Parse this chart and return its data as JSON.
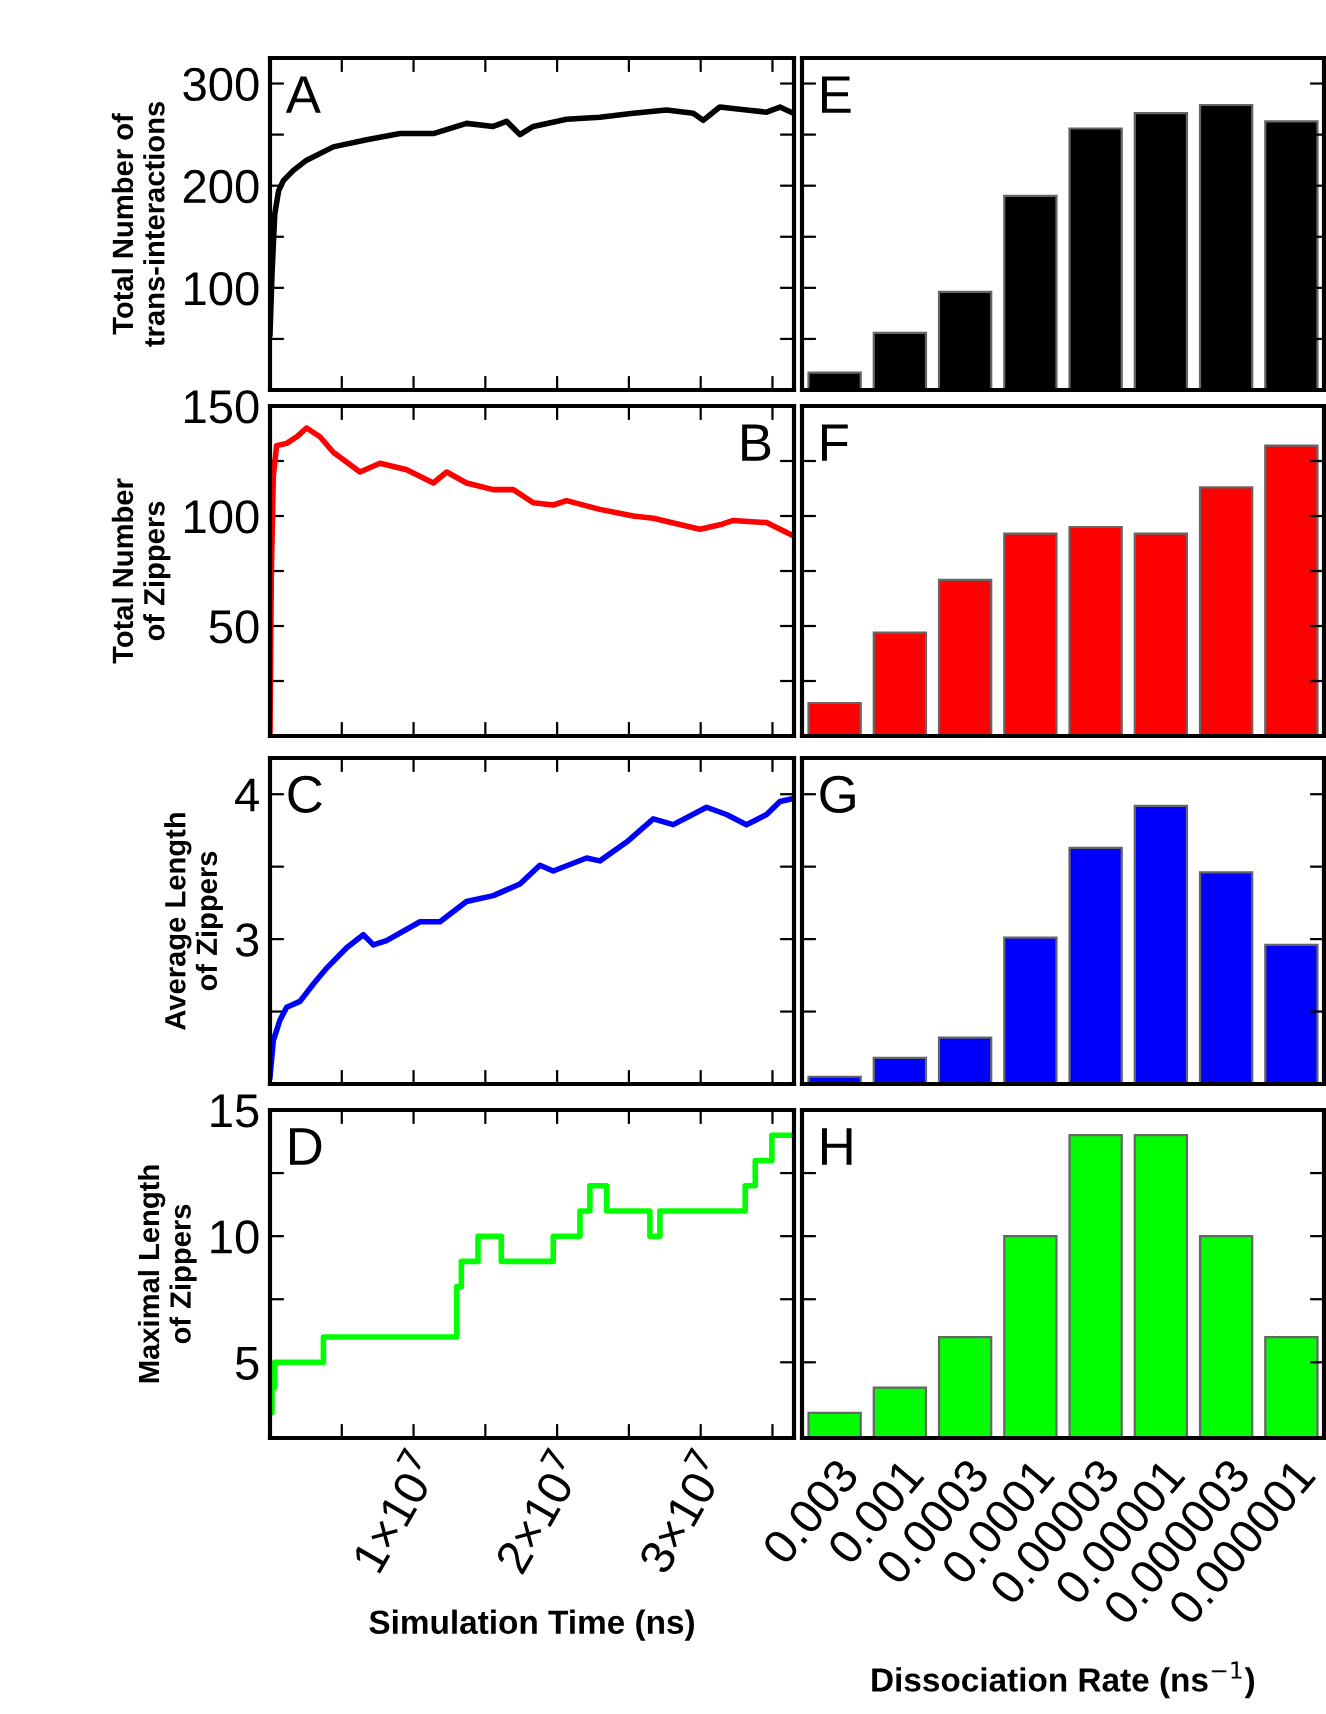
{
  "chart_data": [
    {
      "type": "line",
      "ylabel": "Total Number of\ntrans-interactions",
      "annotations": [
        "A"
      ],
      "xlim": [
        0,
        36500000.0
      ],
      "xticks": [
        {
          "value": 5000000.0,
          "label": null
        },
        {
          "value": 10000000.0,
          "label": null
        },
        {
          "value": 15000000.0,
          "label": null
        },
        {
          "value": 20000000.0,
          "label": null
        },
        {
          "value": 25000000.0,
          "label": null
        },
        {
          "value": 30000000.0,
          "label": null
        },
        {
          "value": 35000000.0,
          "label": null
        }
      ],
      "ylim": [
        0,
        325
      ],
      "yticks": [
        {
          "value": 50,
          "label": null
        },
        100,
        {
          "value": 150,
          "label": null
        },
        200,
        {
          "value": 250,
          "label": null
        },
        300
      ],
      "tick_labels": "y",
      "series": [
        {
          "color": "#000000",
          "x": [
            0,
            140000.0,
            330000.0,
            600000.0,
            930000.0,
            1630000.0,
            2550000.0,
            4410000.0,
            6730000.0,
            9060000.0,
            11380000.0,
            13690000.0,
            15550000.0,
            16480000.0,
            17410000.0,
            18340000.0,
            20660000.0,
            22980000.0,
            25300000.0,
            27620000.0,
            29480000.0,
            30170000.0,
            31330000.0,
            33190000.0,
            34590000.0,
            35520000.0,
            36450000.0
          ],
          "values": [
            55,
            114,
            172,
            195,
            205,
            215,
            225,
            238,
            245,
            251,
            251,
            261,
            258,
            263,
            250,
            258,
            265,
            267,
            271,
            274,
            271,
            264,
            277,
            274,
            272,
            277,
            271
          ]
        }
      ]
    },
    {
      "type": "line",
      "ylabel": "Total Number\nof Zippers",
      "annotations": [
        "B"
      ],
      "xlim": [
        0,
        36500000.0
      ],
      "xticks": [
        {
          "value": 5000000.0,
          "label": null
        },
        {
          "value": 10000000.0,
          "label": null
        },
        {
          "value": 15000000.0,
          "label": null
        },
        {
          "value": 20000000.0,
          "label": null
        },
        {
          "value": 25000000.0,
          "label": null
        },
        {
          "value": 30000000.0,
          "label": null
        },
        {
          "value": 35000000.0,
          "label": null
        }
      ],
      "ylim": [
        0,
        150
      ],
      "yticks": [
        {
          "value": 25,
          "label": null
        },
        50,
        {
          "value": 75,
          "label": null
        },
        100,
        {
          "value": 125,
          "label": null
        },
        150
      ],
      "tick_labels": "y",
      "series": [
        {
          "color": "#ff0000",
          "x": [
            0,
            90000.0,
            230000.0,
            460000.0,
            1160000.0,
            1860000.0,
            2550000.0,
            3480000.0,
            4410000.0,
            6270000.0,
            7660000.0,
            9520000.0,
            11380000.0,
            12310000.0,
            13690000.0,
            15550000.0,
            16950000.0,
            18340000.0,
            19730000.0,
            20660000.0,
            22980000.0,
            25300000.0,
            26700000.0,
            29950000.0,
            31340000.0,
            32270000.0,
            34590000.0,
            36450000.0
          ],
          "values": [
            1,
            73,
            118,
            132,
            133,
            136,
            140,
            136,
            129,
            120,
            124,
            121,
            115,
            120,
            115,
            112,
            112,
            106,
            105,
            107,
            103,
            100,
            99,
            94,
            96,
            98,
            97,
            91
          ]
        }
      ]
    },
    {
      "type": "line",
      "ylabel": "Average Length\nof Zippers",
      "annotations": [
        "C"
      ],
      "xlim": [
        0,
        36500000.0
      ],
      "xticks": [
        {
          "value": 5000000.0,
          "label": null
        },
        {
          "value": 10000000.0,
          "label": null
        },
        {
          "value": 15000000.0,
          "label": null
        },
        {
          "value": 20000000.0,
          "label": null
        },
        {
          "value": 25000000.0,
          "label": null
        },
        {
          "value": 30000000.0,
          "label": null
        },
        {
          "value": 35000000.0,
          "label": null
        }
      ],
      "ylim": [
        2,
        4.25
      ],
      "yticks": [
        {
          "value": 2.5,
          "label": null
        },
        3,
        {
          "value": 3.5,
          "label": null
        },
        4
      ],
      "tick_labels": "y",
      "series": [
        {
          "color": "#0000ff",
          "x": [
            0,
            230000.0,
            690000.0,
            1160000.0,
            2090000.0,
            3020000.0,
            3950000.0,
            5340000.0,
            6500000.0,
            7200000.0,
            8120000.0,
            10450000.0,
            11840000.0,
            13690000.0,
            15550000.0,
            17410000.0,
            18800000.0,
            19730000.0,
            22050000.0,
            22980000.0,
            24840000.0,
            26700000.0,
            28090000.0,
            30410000.0,
            31800000.0,
            33190000.0,
            34590000.0,
            35520000.0,
            36450000.0
          ],
          "values": [
            2.05,
            2.3,
            2.44,
            2.53,
            2.57,
            2.69,
            2.8,
            2.94,
            3.03,
            2.96,
            2.99,
            3.12,
            3.12,
            3.26,
            3.3,
            3.38,
            3.51,
            3.47,
            3.56,
            3.54,
            3.67,
            3.83,
            3.79,
            3.91,
            3.86,
            3.79,
            3.86,
            3.95,
            3.97
          ]
        }
      ]
    },
    {
      "type": "step",
      "ylabel": "Maximal Length\nof Zippers",
      "xlabel": "Simulation Time (ns)",
      "annotations": [
        "D"
      ],
      "xlim": [
        0,
        36500000.0
      ],
      "xticks": [
        {
          "value": 5000000.0,
          "label": null
        },
        {
          "value": 10000000.0,
          "label": "1×10$^{7}$"
        },
        {
          "value": 15000000.0,
          "label": null
        },
        {
          "value": 20000000.0,
          "label": "2×10$^{7}$"
        },
        {
          "value": 25000000.0,
          "label": null
        },
        {
          "value": 30000000.0,
          "label": "3×10$^{7}$"
        },
        {
          "value": 35000000.0,
          "label": null
        }
      ],
      "ylim": [
        2,
        15
      ],
      "yticks": [
        5,
        {
          "value": 7.5,
          "label": null
        },
        10,
        {
          "value": 12.5,
          "label": null
        },
        15
      ],
      "series": [
        {
          "color": "#00ff00",
          "x": [
            0,
            140000.0,
            330000.0,
            3720000.0,
            13000000.0,
            13330000.0,
            14490000.0,
            16110000.0,
            19730000.0,
            21590000.0,
            22280000.0,
            23450000.0,
            26460000.0,
            27160000.0,
            33100000.0,
            33800000.0,
            34960000.0,
            36450000.0
          ],
          "values": [
            3,
            4,
            5,
            6,
            8,
            9,
            10,
            9,
            10,
            11,
            12,
            11,
            10,
            11,
            12,
            13,
            14,
            14
          ]
        }
      ]
    },
    {
      "type": "bar",
      "annotations": [
        "E"
      ],
      "categories": [
        "0.003",
        "0.001",
        "0.0003",
        "0.0001",
        "0.00003",
        "0.00001",
        "0.000003",
        "0.000001"
      ],
      "ylim": [
        0,
        325
      ],
      "yticks": [
        50,
        100,
        150,
        200,
        250,
        300
      ],
      "tick_labels": false,
      "series": [
        {
          "color": "#000000",
          "values": [
            17,
            56,
            96,
            190,
            256,
            271,
            279,
            263
          ]
        }
      ]
    },
    {
      "type": "bar",
      "annotations": [
        "F"
      ],
      "categories": [
        "0.003",
        "0.001",
        "0.0003",
        "0.0001",
        "0.00003",
        "0.00001",
        "0.000003",
        "0.000001"
      ],
      "ylim": [
        0,
        150
      ],
      "yticks": [
        25,
        50,
        75,
        100,
        125,
        150
      ],
      "tick_labels": false,
      "series": [
        {
          "color": "#ff0000",
          "values": [
            15,
            47,
            71,
            92,
            95,
            92,
            113,
            132
          ]
        }
      ]
    },
    {
      "type": "bar",
      "annotations": [
        "G"
      ],
      "categories": [
        "0.003",
        "0.001",
        "0.0003",
        "0.0001",
        "0.00003",
        "0.00001",
        "0.000003",
        "0.000001"
      ],
      "ylim": [
        2,
        4.25
      ],
      "yticks": [
        2.5,
        3,
        3.5,
        4
      ],
      "tick_labels": false,
      "series": [
        {
          "color": "#0000ff",
          "values": [
            2.05,
            2.18,
            2.32,
            3.01,
            3.63,
            3.92,
            3.46,
            2.96
          ]
        }
      ]
    },
    {
      "type": "bar",
      "xlabel": "Dissociation Rate (ns$^{−1}$)",
      "annotations": [
        "H"
      ],
      "categories": [
        "0.003",
        "0.001",
        "0.0003",
        "0.0001",
        "0.00003",
        "0.00001",
        "0.000003",
        "0.000001"
      ],
      "ylim": [
        2,
        15
      ],
      "yticks": [
        5,
        7.5,
        10,
        12.5,
        15
      ],
      "tick_labels": "x",
      "series": [
        {
          "color": "#00ff00",
          "values": [
            3,
            4,
            6,
            10,
            14,
            14,
            10,
            6
          ]
        }
      ]
    }
  ]
}
